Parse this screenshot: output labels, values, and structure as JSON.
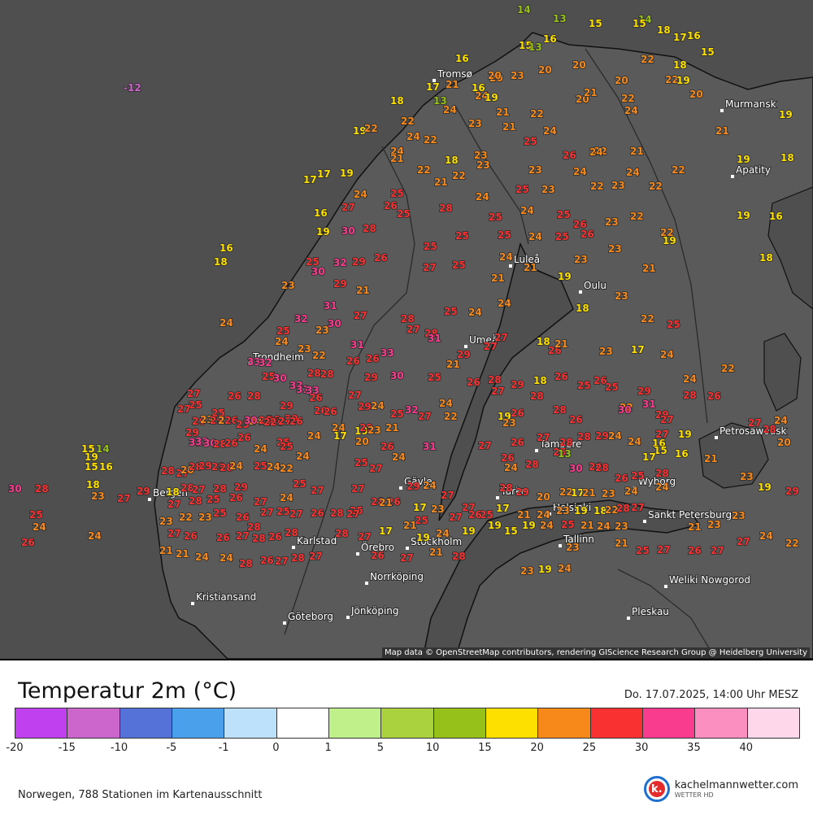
{
  "map": {
    "attribution": "Map data © OpenStreetMap contributors, rendering GIScience Research Group @ Heidelberg University",
    "cities": [
      {
        "name": "Tromsø"
      },
      {
        "name": "Murmansk"
      },
      {
        "name": "Apatity"
      },
      {
        "name": "Luleå"
      },
      {
        "name": "Oulu"
      },
      {
        "name": "Umeå"
      },
      {
        "name": "Trondheim"
      },
      {
        "name": "Petrosawodsk"
      },
      {
        "name": "Tampere"
      },
      {
        "name": "Gävle"
      },
      {
        "name": "Bergen"
      },
      {
        "name": "Turku"
      },
      {
        "name": "Helsinki"
      },
      {
        "name": "Wyborg"
      },
      {
        "name": "Sankt Petersburg"
      },
      {
        "name": "Karlstad"
      },
      {
        "name": "Örebro"
      },
      {
        "name": "Stockholm"
      },
      {
        "name": "Tallinn"
      },
      {
        "name": "Norrköping"
      },
      {
        "name": "Weliki Nowgorod"
      },
      {
        "name": "Kristiansand"
      },
      {
        "name": "Jönköping"
      },
      {
        "name": "Göteborg"
      },
      {
        "name": "Pleskau"
      }
    ],
    "stations": [
      {
        "t": "14"
      },
      {
        "t": "13"
      },
      {
        "t": "14"
      },
      {
        "t": "15"
      },
      {
        "t": "15"
      },
      {
        "t": "18"
      },
      {
        "t": "17"
      },
      {
        "t": "15"
      },
      {
        "t": "16"
      },
      {
        "t": "16"
      },
      {
        "t": "15"
      },
      {
        "t": "13"
      },
      {
        "t": "20"
      },
      {
        "t": "20"
      },
      {
        "t": "22"
      },
      {
        "t": "18"
      },
      {
        "t": "22"
      },
      {
        "t": "19"
      },
      {
        "t": "20"
      },
      {
        "t": "20"
      },
      {
        "t": "16"
      },
      {
        "t": "20"
      },
      {
        "t": "-12"
      },
      {
        "t": "21"
      },
      {
        "t": "17"
      },
      {
        "t": "13"
      },
      {
        "t": "18"
      },
      {
        "t": "16"
      },
      {
        "t": "24"
      },
      {
        "t": "20"
      },
      {
        "t": "23"
      },
      {
        "t": "19"
      },
      {
        "t": "20"
      },
      {
        "t": "21"
      },
      {
        "t": "22"
      },
      {
        "t": "24"
      },
      {
        "t": "19"
      },
      {
        "t": "21"
      },
      {
        "t": "21"
      },
      {
        "t": "22"
      },
      {
        "t": "21"
      },
      {
        "t": "19"
      },
      {
        "t": "22"
      },
      {
        "t": "24"
      },
      {
        "t": "24"
      },
      {
        "t": "22"
      },
      {
        "t": "22"
      },
      {
        "t": "24"
      },
      {
        "t": "23"
      },
      {
        "t": "25"
      },
      {
        "t": "24"
      },
      {
        "t": "26"
      },
      {
        "t": "23"
      },
      {
        "t": "22"
      },
      {
        "t": "18"
      },
      {
        "t": "23"
      },
      {
        "t": "21"
      },
      {
        "t": "22"
      },
      {
        "t": "24"
      },
      {
        "t": "24"
      },
      {
        "t": "23"
      },
      {
        "t": "21"
      },
      {
        "t": "22"
      },
      {
        "t": "19"
      },
      {
        "t": "18"
      },
      {
        "t": "24"
      },
      {
        "t": "23"
      },
      {
        "t": "22"
      },
      {
        "t": "17"
      },
      {
        "t": "17"
      },
      {
        "t": "19"
      },
      {
        "t": "21"
      },
      {
        "t": "24"
      },
      {
        "t": "25"
      },
      {
        "t": "26"
      },
      {
        "t": "25"
      },
      {
        "t": "23"
      },
      {
        "t": "22"
      },
      {
        "t": "22"
      },
      {
        "t": "16"
      },
      {
        "t": "27"
      },
      {
        "t": "28"
      },
      {
        "t": "24"
      },
      {
        "t": "25"
      },
      {
        "t": "24"
      },
      {
        "t": "25"
      },
      {
        "t": "26"
      },
      {
        "t": "23"
      },
      {
        "t": "22"
      },
      {
        "t": "19"
      },
      {
        "t": "16"
      },
      {
        "t": "19"
      },
      {
        "t": "30"
      },
      {
        "t": "28"
      },
      {
        "t": "25"
      },
      {
        "t": "25"
      },
      {
        "t": "24"
      },
      {
        "t": "25"
      },
      {
        "t": "26"
      },
      {
        "t": "22"
      },
      {
        "t": "16"
      },
      {
        "t": "18"
      },
      {
        "t": "25"
      },
      {
        "t": "32"
      },
      {
        "t": "29"
      },
      {
        "t": "26"
      },
      {
        "t": "25"
      },
      {
        "t": "25"
      },
      {
        "t": "24"
      },
      {
        "t": "23"
      },
      {
        "t": "21"
      },
      {
        "t": "19"
      },
      {
        "t": "18"
      },
      {
        "t": "30"
      },
      {
        "t": "29"
      },
      {
        "t": "21"
      },
      {
        "t": "27"
      },
      {
        "t": "25"
      },
      {
        "t": "21"
      },
      {
        "t": "19"
      },
      {
        "t": "23"
      },
      {
        "t": "21"
      },
      {
        "t": "23"
      },
      {
        "t": "24"
      },
      {
        "t": "31"
      },
      {
        "t": "27"
      },
      {
        "t": "28"
      },
      {
        "t": "25"
      },
      {
        "t": "24"
      },
      {
        "t": "18"
      },
      {
        "t": "23"
      },
      {
        "t": "22"
      },
      {
        "t": "25"
      },
      {
        "t": "32"
      },
      {
        "t": "30"
      },
      {
        "t": "31"
      },
      {
        "t": "27"
      },
      {
        "t": "28"
      },
      {
        "t": "27"
      },
      {
        "t": "26"
      },
      {
        "t": "23"
      },
      {
        "t": "25"
      },
      {
        "t": "24"
      },
      {
        "t": "24"
      },
      {
        "t": "23"
      },
      {
        "t": "22"
      },
      {
        "t": "26"
      },
      {
        "t": "33"
      },
      {
        "t": "31"
      },
      {
        "t": "27"
      },
      {
        "t": "29"
      },
      {
        "t": "30"
      },
      {
        "t": "26"
      },
      {
        "t": "23"
      },
      {
        "t": "17"
      },
      {
        "t": "24"
      },
      {
        "t": "24"
      },
      {
        "t": "22"
      },
      {
        "t": "18"
      },
      {
        "t": "21"
      },
      {
        "t": "33"
      },
      {
        "t": "32"
      },
      {
        "t": "28"
      },
      {
        "t": "27"
      },
      {
        "t": "29"
      },
      {
        "t": "25"
      },
      {
        "t": "21"
      },
      {
        "t": "18"
      },
      {
        "t": "26"
      },
      {
        "t": "25"
      },
      {
        "t": "25"
      },
      {
        "t": "30"
      },
      {
        "t": "33"
      },
      {
        "t": "31"
      },
      {
        "t": "33"
      },
      {
        "t": "28"
      },
      {
        "t": "29"
      },
      {
        "t": "24"
      },
      {
        "t": "25"
      },
      {
        "t": "27"
      },
      {
        "t": "26"
      },
      {
        "t": "28"
      },
      {
        "t": "27"
      },
      {
        "t": "29"
      },
      {
        "t": "28"
      },
      {
        "t": "26"
      },
      {
        "t": "25"
      },
      {
        "t": "22"
      },
      {
        "t": "29"
      },
      {
        "t": "31"
      },
      {
        "t": "27"
      },
      {
        "t": "25"
      },
      {
        "t": "26"
      },
      {
        "t": "28"
      },
      {
        "t": "26"
      },
      {
        "t": "29"
      },
      {
        "t": "26"
      },
      {
        "t": "19"
      },
      {
        "t": "32"
      },
      {
        "t": "24"
      },
      {
        "t": "27"
      },
      {
        "t": "25"
      },
      {
        "t": "24"
      },
      {
        "t": "26"
      },
      {
        "t": "29"
      },
      {
        "t": "26"
      },
      {
        "t": "24"
      },
      {
        "t": "29"
      },
      {
        "t": "23"
      },
      {
        "t": "21"
      },
      {
        "t": "22"
      },
      {
        "t": "19"
      },
      {
        "t": "23"
      },
      {
        "t": "26"
      },
      {
        "t": "28"
      },
      {
        "t": "26"
      },
      {
        "t": "30"
      },
      {
        "t": "29"
      },
      {
        "t": "27"
      },
      {
        "t": "28"
      },
      {
        "t": "27"
      },
      {
        "t": "26"
      },
      {
        "t": "27"
      },
      {
        "t": "28"
      },
      {
        "t": "24"
      },
      {
        "t": "26"
      },
      {
        "t": "23"
      },
      {
        "t": "29"
      },
      {
        "t": "22"
      },
      {
        "t": "26"
      },
      {
        "t": "25"
      },
      {
        "t": "30"
      },
      {
        "t": "25"
      },
      {
        "t": "26"
      },
      {
        "t": "28"
      },
      {
        "t": "27"
      },
      {
        "t": "26"
      },
      {
        "t": "24"
      },
      {
        "t": "17"
      },
      {
        "t": "20"
      },
      {
        "t": "26"
      },
      {
        "t": "31"
      },
      {
        "t": "27"
      },
      {
        "t": "26"
      },
      {
        "t": "27"
      },
      {
        "t": "28"
      },
      {
        "t": "28"
      },
      {
        "t": "29"
      },
      {
        "t": "24"
      },
      {
        "t": "24"
      },
      {
        "t": "16"
      },
      {
        "t": "15"
      },
      {
        "t": "19"
      },
      {
        "t": "21"
      },
      {
        "t": "20"
      },
      {
        "t": "29"
      },
      {
        "t": "31"
      },
      {
        "t": "32"
      },
      {
        "t": "30"
      },
      {
        "t": "28"
      },
      {
        "t": "26"
      },
      {
        "t": "26"
      },
      {
        "t": "24"
      },
      {
        "t": "25"
      },
      {
        "t": "25"
      },
      {
        "t": "24"
      },
      {
        "t": "26"
      },
      {
        "t": "25"
      },
      {
        "t": "13"
      },
      {
        "t": "17"
      },
      {
        "t": "16"
      },
      {
        "t": "15"
      },
      {
        "t": "14"
      },
      {
        "t": "19"
      },
      {
        "t": "28"
      },
      {
        "t": "27"
      },
      {
        "t": "20"
      },
      {
        "t": "28"
      },
      {
        "t": "29"
      },
      {
        "t": "29"
      },
      {
        "t": "28"
      },
      {
        "t": "24"
      },
      {
        "t": "25"
      },
      {
        "t": "24"
      },
      {
        "t": "22"
      },
      {
        "t": "25"
      },
      {
        "t": "27"
      },
      {
        "t": "24"
      },
      {
        "t": "24"
      },
      {
        "t": "28"
      },
      {
        "t": "30"
      },
      {
        "t": "26"
      },
      {
        "t": "28"
      },
      {
        "t": "26"
      },
      {
        "t": "25"
      },
      {
        "t": "28"
      },
      {
        "t": "23"
      },
      {
        "t": "15"
      },
      {
        "t": "16"
      },
      {
        "t": "18"
      },
      {
        "t": "18"
      },
      {
        "t": "28"
      },
      {
        "t": "27"
      },
      {
        "t": "28"
      },
      {
        "t": "29"
      },
      {
        "t": "25"
      },
      {
        "t": "27"
      },
      {
        "t": "27"
      },
      {
        "t": "28"
      },
      {
        "t": "26"
      },
      {
        "t": "29"
      },
      {
        "t": "24"
      },
      {
        "t": "27"
      },
      {
        "t": "28"
      },
      {
        "t": "29"
      },
      {
        "t": "20"
      },
      {
        "t": "22"
      },
      {
        "t": "17"
      },
      {
        "t": "21"
      },
      {
        "t": "23"
      },
      {
        "t": "24"
      },
      {
        "t": "24"
      },
      {
        "t": "19"
      },
      {
        "t": "29"
      },
      {
        "t": "30"
      },
      {
        "t": "28"
      },
      {
        "t": "23"
      },
      {
        "t": "27"
      },
      {
        "t": "29"
      },
      {
        "t": "27"
      },
      {
        "t": "28"
      },
      {
        "t": "25"
      },
      {
        "t": "26"
      },
      {
        "t": "27"
      },
      {
        "t": "24"
      },
      {
        "t": "25"
      },
      {
        "t": "21"
      },
      {
        "t": "17"
      },
      {
        "t": "23"
      },
      {
        "t": "27"
      },
      {
        "t": "25"
      },
      {
        "t": "17"
      },
      {
        "t": "21"
      },
      {
        "t": "24"
      },
      {
        "t": "23"
      },
      {
        "t": "19"
      },
      {
        "t": "18"
      },
      {
        "t": "22"
      },
      {
        "t": "28"
      },
      {
        "t": "27"
      },
      {
        "t": "23"
      },
      {
        "t": "25"
      },
      {
        "t": "24"
      },
      {
        "t": "23"
      },
      {
        "t": "22"
      },
      {
        "t": "23"
      },
      {
        "t": "25"
      },
      {
        "t": "26"
      },
      {
        "t": "28"
      },
      {
        "t": "27"
      },
      {
        "t": "25"
      },
      {
        "t": "27"
      },
      {
        "t": "26"
      },
      {
        "t": "28"
      },
      {
        "t": "27"
      },
      {
        "t": "25"
      },
      {
        "t": "27"
      },
      {
        "t": "26"
      },
      {
        "t": "19"
      },
      {
        "t": "15"
      },
      {
        "t": "19"
      },
      {
        "t": "24"
      },
      {
        "t": "25"
      },
      {
        "t": "21"
      },
      {
        "t": "24"
      },
      {
        "t": "23"
      },
      {
        "t": "21"
      },
      {
        "t": "23"
      },
      {
        "t": "24"
      },
      {
        "t": "26"
      },
      {
        "t": "27"
      },
      {
        "t": "26"
      },
      {
        "t": "26"
      },
      {
        "t": "27"
      },
      {
        "t": "28"
      },
      {
        "t": "26"
      },
      {
        "t": "28"
      },
      {
        "t": "28"
      },
      {
        "t": "27"
      },
      {
        "t": "17"
      },
      {
        "t": "21"
      },
      {
        "t": "19"
      },
      {
        "t": "24"
      },
      {
        "t": "19"
      },
      {
        "t": "23"
      },
      {
        "t": "21"
      },
      {
        "t": "25"
      },
      {
        "t": "27"
      },
      {
        "t": "26"
      },
      {
        "t": "27"
      },
      {
        "t": "27"
      },
      {
        "t": "24"
      },
      {
        "t": "22"
      },
      {
        "t": "21"
      },
      {
        "t": "21"
      },
      {
        "t": "24"
      },
      {
        "t": "24"
      },
      {
        "t": "28"
      },
      {
        "t": "26"
      },
      {
        "t": "27"
      },
      {
        "t": "28"
      },
      {
        "t": "27"
      },
      {
        "t": "26"
      },
      {
        "t": "27"
      },
      {
        "t": "21"
      },
      {
        "t": "28"
      },
      {
        "t": "23"
      },
      {
        "t": "19"
      },
      {
        "t": "24"
      }
    ]
  },
  "footer": {
    "title": "Temperatur 2m (°C)",
    "datetime": "Do. 17.07.2025, 14:00 Uhr MESZ",
    "stations_info": "Norwegen, 788 Stationen im Kartenausschnitt",
    "brand": {
      "name": "kachelmannwetter.com",
      "sub": "WETTER HD",
      "logo_letter": "k."
    }
  },
  "legend": {
    "ticks": [
      "-20",
      "-15",
      "-10",
      "-5",
      "-1",
      "0",
      "1",
      "5",
      "10",
      "15",
      "20",
      "25",
      "30",
      "35",
      "40"
    ],
    "colors": [
      "#c040f0",
      "#cc66cc",
      "#5572d8",
      "#4aa0ea",
      "#bde0fb",
      "#ffffff",
      "#bff08a",
      "#a9d23e",
      "#96c11a",
      "#fde000",
      "#f6891a",
      "#fa3131",
      "#f93c8d",
      "#fb8fc0",
      "#ffd7eb"
    ]
  }
}
